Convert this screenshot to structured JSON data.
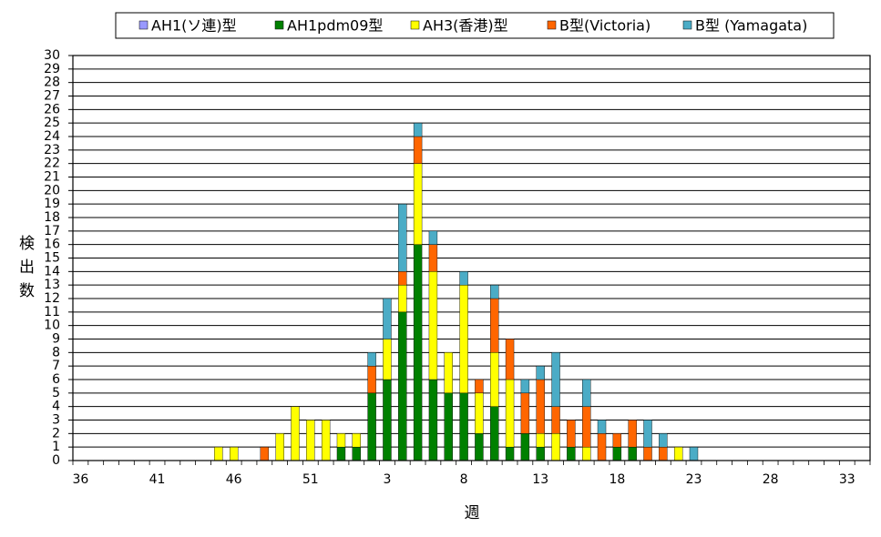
{
  "chart_data": {
    "type": "stacked_bar",
    "x_label": "週",
    "y_label": "検出数",
    "categories": [
      "36",
      null,
      null,
      null,
      null,
      "41",
      null,
      null,
      null,
      null,
      "46",
      null,
      null,
      null,
      null,
      "51",
      null,
      null,
      null,
      null,
      "3",
      null,
      null,
      null,
      null,
      "8",
      null,
      null,
      null,
      null,
      "13",
      null,
      null,
      null,
      null,
      "18",
      null,
      null,
      null,
      null,
      "23",
      null,
      null,
      null,
      null,
      "28",
      null,
      null,
      null,
      null,
      "33",
      null
    ],
    "series": [
      {
        "name": "AH1(ソ連)型",
        "color": "#9999ff",
        "values": [
          0,
          0,
          0,
          0,
          0,
          0,
          0,
          0,
          0,
          0,
          0,
          0,
          0,
          0,
          0,
          0,
          0,
          0,
          0,
          0,
          0,
          0,
          0,
          0,
          0,
          0,
          0,
          0,
          0,
          0,
          0,
          0,
          0,
          0,
          0,
          0,
          0,
          0,
          0,
          0,
          0,
          0,
          0,
          0,
          0,
          0,
          0,
          0,
          0,
          0,
          0,
          0
        ]
      },
      {
        "name": "AH1pdm09型",
        "color": "#008000",
        "values": [
          0,
          0,
          0,
          0,
          0,
          0,
          0,
          0,
          0,
          0,
          0,
          0,
          0,
          0,
          0,
          0,
          0,
          1,
          1,
          5,
          6,
          11,
          16,
          6,
          5,
          5,
          2,
          4,
          1,
          2,
          1,
          0,
          1,
          0,
          0,
          1,
          1,
          0,
          0,
          0,
          0,
          0,
          0,
          0,
          0,
          0,
          0,
          0,
          0,
          0,
          0,
          0
        ]
      },
      {
        "name": "AH3(香港)型",
        "color": "#ffff00",
        "values": [
          0,
          0,
          0,
          0,
          0,
          0,
          0,
          0,
          0,
          1,
          1,
          0,
          0,
          2,
          4,
          3,
          3,
          1,
          1,
          0,
          3,
          2,
          6,
          8,
          3,
          8,
          3,
          4,
          5,
          0,
          1,
          2,
          0,
          1,
          0,
          0,
          0,
          0,
          0,
          1,
          0,
          0,
          0,
          0,
          0,
          0,
          0,
          0,
          0,
          0,
          0,
          0
        ]
      },
      {
        "name": "B型(Victoria)",
        "color": "#ff6600",
        "values": [
          0,
          0,
          0,
          0,
          0,
          0,
          0,
          0,
          0,
          0,
          0,
          0,
          1,
          0,
          0,
          0,
          0,
          0,
          0,
          2,
          0,
          1,
          2,
          2,
          0,
          0,
          1,
          4,
          3,
          3,
          4,
          2,
          2,
          3,
          2,
          1,
          2,
          1,
          1,
          0,
          0,
          0,
          0,
          0,
          0,
          0,
          0,
          0,
          0,
          0,
          0,
          0
        ]
      },
      {
        "name": "B型 (Yamagata)",
        "color": "#4bacc6",
        "values": [
          0,
          0,
          0,
          0,
          0,
          0,
          0,
          0,
          0,
          0,
          0,
          0,
          0,
          0,
          0,
          0,
          0,
          0,
          0,
          1,
          3,
          5,
          1,
          1,
          0,
          1,
          0,
          1,
          0,
          1,
          1,
          4,
          0,
          2,
          1,
          0,
          0,
          2,
          1,
          0,
          1,
          0,
          0,
          0,
          0,
          0,
          0,
          0,
          0,
          0,
          0,
          0
        ]
      }
    ],
    "ylim": [
      0,
      30
    ],
    "yticks": [
      0,
      1,
      2,
      3,
      4,
      5,
      6,
      7,
      8,
      9,
      10,
      11,
      12,
      13,
      14,
      15,
      16,
      17,
      18,
      19,
      20,
      21,
      22,
      23,
      24,
      25,
      26,
      27,
      28,
      29,
      30
    ],
    "grid": true,
    "legend": "top"
  }
}
